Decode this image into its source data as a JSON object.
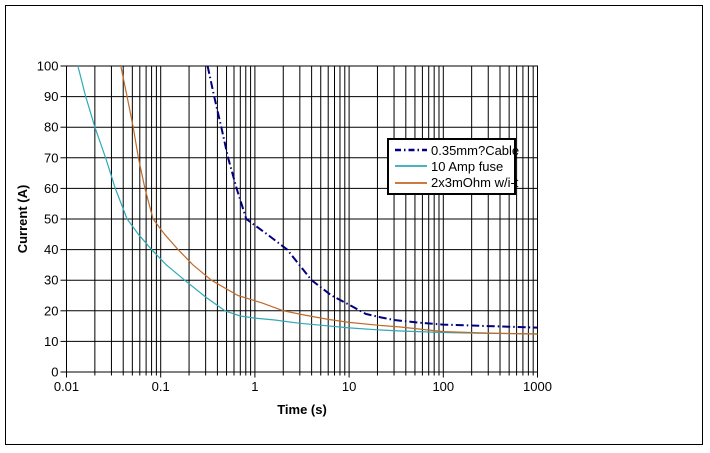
{
  "chart_data": {
    "type": "line",
    "title": "",
    "xlabel": "Time (s)",
    "ylabel": "Current (A)",
    "x_scale": "log",
    "xlim": [
      0.01,
      1000
    ],
    "ylim": [
      0,
      100
    ],
    "x_ticks": [
      "0.01",
      "0.1",
      "1",
      "10",
      "100",
      "1000"
    ],
    "y_ticks": [
      "0",
      "10",
      "20",
      "30",
      "40",
      "50",
      "60",
      "70",
      "80",
      "90",
      "100"
    ],
    "grid": "vertical log major+minor lines, horizontal lines every 10 A",
    "legend_position": "inside-upper-right",
    "series": [
      {
        "name": "0.35mm?Cable",
        "color": "#000080",
        "line_style": "dash-dot",
        "line_width": 2,
        "points": [
          [
            0.315,
            100
          ],
          [
            0.37,
            90
          ],
          [
            0.44,
            80
          ],
          [
            0.52,
            70
          ],
          [
            0.64,
            60
          ],
          [
            0.81,
            50
          ],
          [
            1.35,
            45
          ],
          [
            2.2,
            40
          ],
          [
            4,
            30
          ],
          [
            6.5,
            25
          ],
          [
            10,
            22
          ],
          [
            15,
            19
          ],
          [
            22,
            17.8
          ],
          [
            30,
            17
          ],
          [
            60,
            16
          ],
          [
            100,
            15.5
          ],
          [
            300,
            15
          ],
          [
            1000,
            14.5
          ]
        ]
      },
      {
        "name": "10 Amp fuse",
        "color": "#2fa9b8",
        "line_style": "solid",
        "line_width": 1.2,
        "points": [
          [
            0.0132,
            100
          ],
          [
            0.016,
            90
          ],
          [
            0.02,
            80
          ],
          [
            0.026,
            70
          ],
          [
            0.033,
            60
          ],
          [
            0.044,
            50
          ],
          [
            0.058,
            45
          ],
          [
            0.08,
            40
          ],
          [
            0.115,
            35
          ],
          [
            0.18,
            30
          ],
          [
            0.3,
            24.5
          ],
          [
            0.48,
            20
          ],
          [
            0.7,
            18.3
          ],
          [
            1,
            17.6
          ],
          [
            1.63,
            17
          ],
          [
            3,
            15.9
          ],
          [
            5,
            15.3
          ],
          [
            10,
            14.4
          ],
          [
            20,
            13.8
          ],
          [
            35,
            13.4
          ],
          [
            100,
            12.9
          ],
          [
            300,
            12.6
          ],
          [
            1000,
            12.5
          ]
        ]
      },
      {
        "name": "2x3mOhm w/i-t",
        "color": "#c06a28",
        "line_style": "solid",
        "line_width": 1.2,
        "points": [
          [
            0.0377,
            100
          ],
          [
            0.044,
            90
          ],
          [
            0.051,
            80
          ],
          [
            0.058,
            70
          ],
          [
            0.068,
            60
          ],
          [
            0.083,
            50
          ],
          [
            0.11,
            45
          ],
          [
            0.153,
            40
          ],
          [
            0.22,
            35
          ],
          [
            0.345,
            30
          ],
          [
            0.66,
            25
          ],
          [
            1.2,
            22.5
          ],
          [
            2,
            20
          ],
          [
            3.5,
            18.5
          ],
          [
            6,
            17.2
          ],
          [
            10,
            16.2
          ],
          [
            20,
            15.3
          ],
          [
            35,
            14.7
          ],
          [
            100,
            13.2
          ],
          [
            300,
            12.7
          ],
          [
            1000,
            12.4
          ]
        ]
      }
    ]
  }
}
